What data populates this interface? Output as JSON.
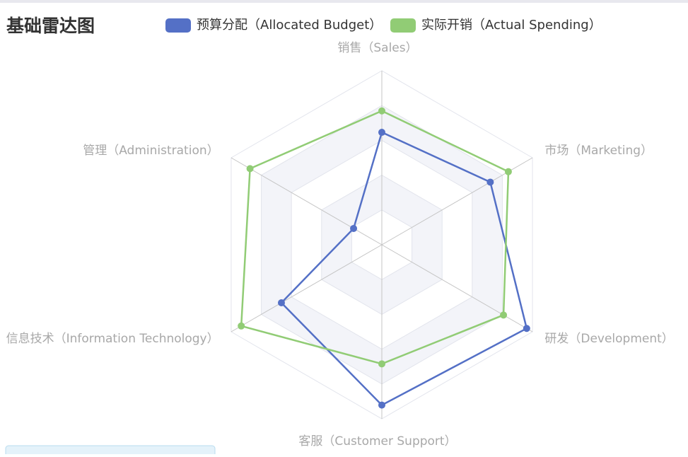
{
  "chart_data": {
    "type": "radar",
    "title": "基础雷达图",
    "indicators": [
      {
        "name": "销售（Sales）",
        "max": 6500
      },
      {
        "name": "管理（Administration）",
        "max": 16000
      },
      {
        "name": "信息技术（Information Technology）",
        "max": 30000
      },
      {
        "name": "客服（Customer Support）",
        "max": 38000
      },
      {
        "name": "研发（Development）",
        "max": 52000
      },
      {
        "name": "市场（Marketing）",
        "max": 25000
      }
    ],
    "series": [
      {
        "name": "预算分配（Allocated Budget）",
        "color": "#5470c6",
        "values": [
          4200,
          3000,
          20000,
          35000,
          50000,
          18000
        ]
      },
      {
        "name": "实际开销（Actual Spending）",
        "color": "#91cc75",
        "values": [
          5000,
          14000,
          28000,
          26000,
          42000,
          21000
        ]
      }
    ],
    "split_number": 5,
    "legend": "top"
  }
}
